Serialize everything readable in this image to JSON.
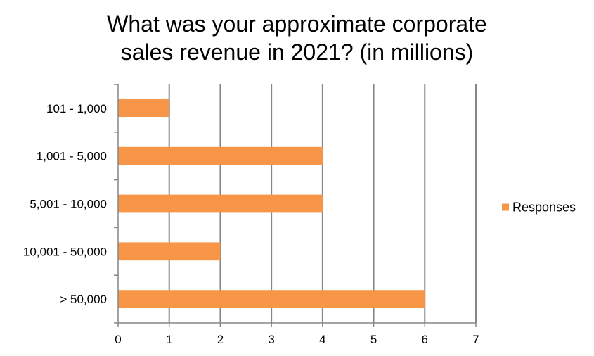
{
  "chart_data": {
    "type": "bar",
    "orientation": "horizontal",
    "title_lines": [
      "What was your approximate corporate",
      "sales revenue in 2021? (in millions)"
    ],
    "categories": [
      "101 - 1,000",
      "1,001 - 5,000",
      "5,001 - 10,000",
      "10,001 - 50,000",
      "> 50,000"
    ],
    "series": [
      {
        "name": "Responses",
        "values": [
          1,
          4,
          4,
          2,
          6
        ],
        "color": "#F79646"
      }
    ],
    "xlim": [
      0,
      7
    ],
    "xticks": [
      "0",
      "1",
      "2",
      "3",
      "4",
      "5",
      "6",
      "7"
    ],
    "grid": "vertical",
    "legend_position": "right"
  }
}
